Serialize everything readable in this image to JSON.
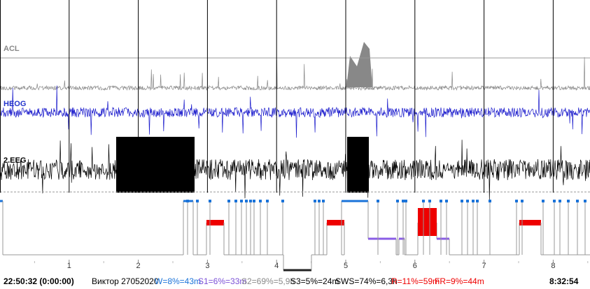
{
  "channels": [
    "ACL",
    "HEOG",
    "2.EEG"
  ],
  "hours": [
    "1",
    "2",
    "3",
    "4",
    "5",
    "6",
    "7",
    "8"
  ],
  "status": {
    "start": "22:50:32 (0:00:00)",
    "name": "Виктор 27052020",
    "w": "W=8%=43m",
    "s1": "S1=6%=33m",
    "s2": "S2=69%=5,9h",
    "s3": "S3=5%=24m",
    "sws": "SWS=74%=6,3h",
    "r": "R=11%=59m",
    "fr": "FR=9%=44m",
    "end": "8:32:54"
  }
}
